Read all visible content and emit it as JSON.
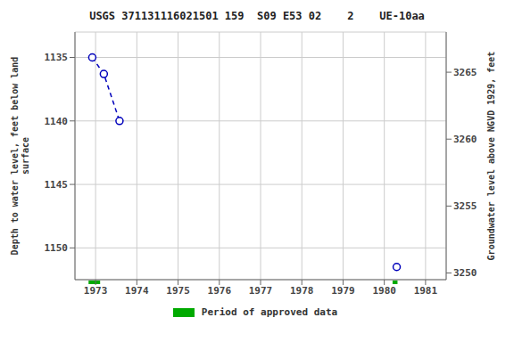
{
  "chart_data": {
    "type": "scatter",
    "title": "USGS 371131116021501 159  S09 E53 02    2    UE-10aa",
    "ylabel": "Depth to water level, feet below land\nsurface",
    "y2label": "Groundwater level above NGVD 1929, feet",
    "x": [
      1972.92,
      1973.2,
      1973.58,
      1980.3
    ],
    "xlim": [
      1972.5,
      1981.5
    ],
    "xticks": [
      1973,
      1974,
      1975,
      1976,
      1977,
      1978,
      1979,
      1980,
      1981
    ],
    "ylim": [
      1152.5,
      1133.0
    ],
    "yticks": [
      1135,
      1140,
      1145,
      1150
    ],
    "y2lim": [
      3249.5,
      3268.0
    ],
    "y2ticks": [
      3250,
      3255,
      3260,
      3265
    ],
    "grid": true,
    "legend": "bottom",
    "series": [
      {
        "type": "line",
        "line_style": "dashed",
        "color": "#0000bb",
        "values": [
          1135.0,
          1136.3,
          1140.0,
          null
        ]
      },
      {
        "type": "scatter",
        "marker": "circle",
        "color": "#0000bb",
        "values": [
          1135.0,
          1136.3,
          1140.0,
          1151.5
        ]
      }
    ],
    "approved_periods": {
      "name": "Period of approved data",
      "color": "#00aa00",
      "ranges": [
        [
          1972.83,
          1973.11
        ],
        [
          1980.2,
          1980.32
        ]
      ]
    }
  }
}
